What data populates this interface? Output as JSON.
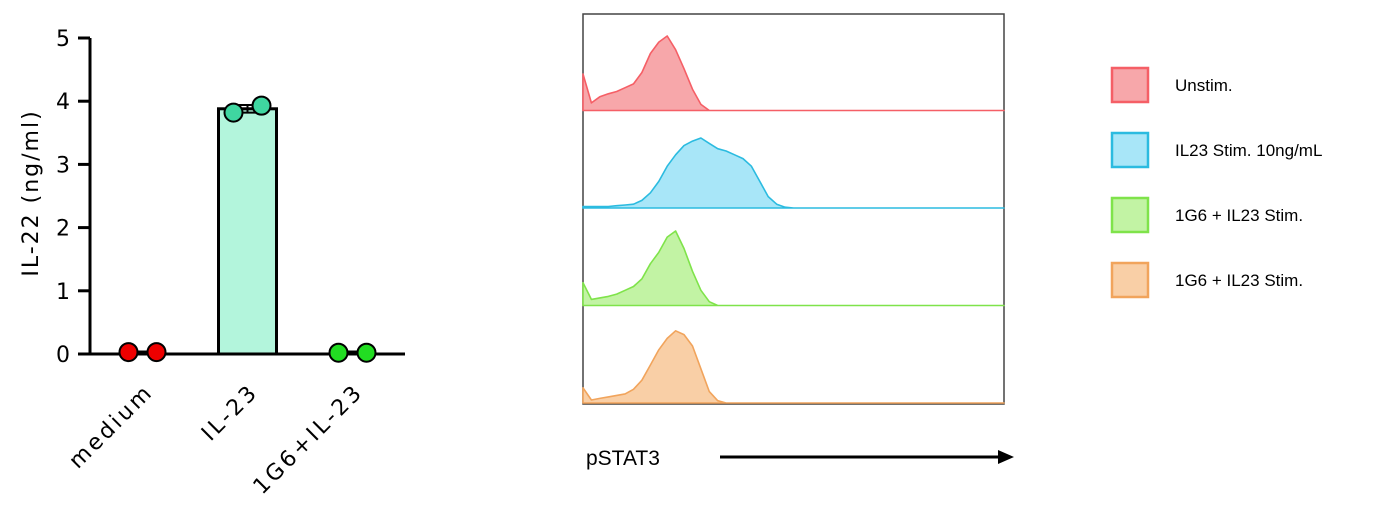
{
  "chart_data": [
    {
      "type": "bar",
      "ylabel": "IL-22 (ng/ml)",
      "xlabel": "",
      "ylim": [
        0,
        5
      ],
      "yticks": [
        0,
        1,
        2,
        3,
        4,
        5
      ],
      "categories": [
        "medium",
        "IL-23",
        "1G6+IL-23"
      ],
      "values": [
        0.02,
        3.88,
        0.02
      ],
      "error": [
        0.02,
        0.06,
        0.02
      ],
      "points": [
        [
          0.03,
          0.03
        ],
        [
          3.82,
          3.93
        ],
        [
          0.02,
          0.02
        ]
      ],
      "colors": {
        "bar_fill": [
          "#ffffff",
          "#b3f5dc",
          "#ffffff"
        ],
        "point_fill": [
          "#ee0000",
          "#3fd6a0",
          "#22dd22"
        ]
      },
      "grid": false
    },
    {
      "type": "area",
      "xlabel": "pSTAT3",
      "grid": false,
      "legend_position": "right",
      "x": [
        0,
        2,
        4,
        6,
        8,
        10,
        12,
        14,
        16,
        18,
        20,
        22,
        24,
        26,
        28,
        30,
        32,
        34,
        36,
        38,
        40,
        42,
        44,
        46,
        48,
        50,
        52,
        54,
        56,
        58,
        60,
        62,
        64,
        66,
        68,
        70,
        72,
        74,
        76,
        78,
        80,
        82,
        84,
        86,
        88,
        90,
        92,
        94,
        96,
        98,
        100
      ],
      "series": [
        {
          "name": "Unstim.",
          "color": "#f55f66",
          "fill": "#f7a7aa",
          "values": [
            0.48,
            0.1,
            0.18,
            0.22,
            0.25,
            0.3,
            0.35,
            0.5,
            0.75,
            0.9,
            0.98,
            0.8,
            0.55,
            0.28,
            0.08,
            0,
            0,
            0,
            0,
            0,
            0,
            0,
            0,
            0,
            0,
            0,
            0,
            0,
            0,
            0,
            0,
            0,
            0,
            0,
            0,
            0,
            0,
            0,
            0,
            0,
            0,
            0,
            0,
            0,
            0,
            0,
            0,
            0,
            0,
            0,
            0
          ]
        },
        {
          "name": "IL23 Stim. 10ng/mL",
          "color": "#2bbbe0",
          "fill": "#a8e6f8",
          "values": [
            0.02,
            0.02,
            0.02,
            0.02,
            0.03,
            0.04,
            0.05,
            0.1,
            0.2,
            0.35,
            0.55,
            0.7,
            0.82,
            0.88,
            0.92,
            0.85,
            0.78,
            0.75,
            0.7,
            0.65,
            0.55,
            0.35,
            0.15,
            0.05,
            0.01,
            0,
            0,
            0,
            0,
            0,
            0,
            0,
            0,
            0,
            0,
            0,
            0,
            0,
            0,
            0,
            0,
            0,
            0,
            0,
            0,
            0,
            0,
            0,
            0,
            0,
            0
          ]
        },
        {
          "name": "1G6 + IL23 Stim.",
          "color": "#7fe34a",
          "fill": "#c2f3a4",
          "values": [
            0.3,
            0.08,
            0.1,
            0.12,
            0.15,
            0.2,
            0.25,
            0.35,
            0.55,
            0.7,
            0.9,
            0.98,
            0.75,
            0.45,
            0.2,
            0.05,
            0,
            0,
            0,
            0,
            0,
            0,
            0,
            0,
            0,
            0,
            0,
            0,
            0,
            0,
            0,
            0,
            0,
            0,
            0,
            0,
            0,
            0,
            0,
            0,
            0,
            0,
            0,
            0,
            0,
            0,
            0,
            0,
            0,
            0,
            0
          ]
        },
        {
          "name": "1G6 + IL23 Stim.",
          "color": "#f1a45c",
          "fill": "#f9cfa6",
          "values": [
            0.2,
            0.04,
            0.06,
            0.08,
            0.1,
            0.12,
            0.18,
            0.3,
            0.5,
            0.7,
            0.85,
            0.95,
            0.9,
            0.75,
            0.45,
            0.15,
            0.03,
            0,
            0,
            0,
            0,
            0,
            0,
            0,
            0,
            0,
            0,
            0,
            0,
            0,
            0,
            0,
            0,
            0,
            0,
            0,
            0,
            0,
            0,
            0,
            0,
            0,
            0,
            0,
            0,
            0,
            0,
            0,
            0,
            0,
            0
          ]
        }
      ]
    }
  ]
}
